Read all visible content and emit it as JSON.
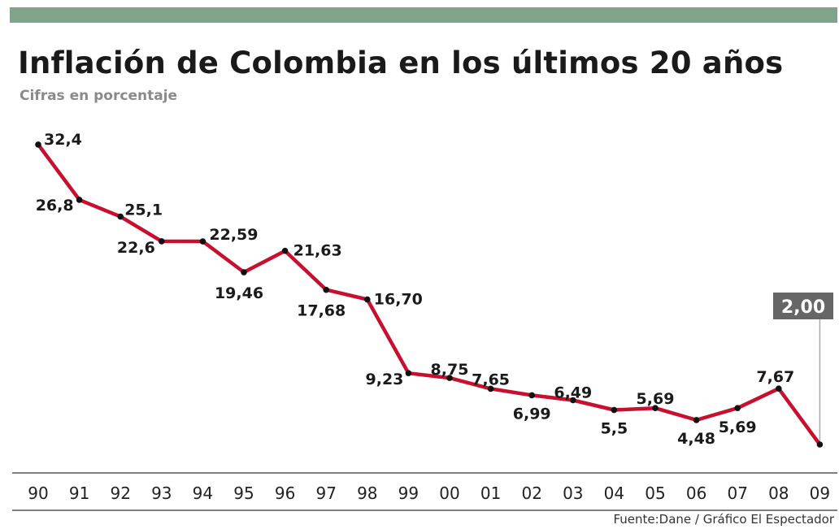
{
  "header": {
    "title": "Inflación de Colombia en los últimos 20 años",
    "subtitle": "Cifras en porcentaje"
  },
  "footer": {
    "source": "Fuente:Dane / Gráfico El Espectador"
  },
  "colors": {
    "top_bar": "#7fa38b",
    "line": "#c8102e",
    "point": "#111111",
    "highlight_label_bg": "#666666",
    "highlight_label_text": "#ffffff"
  },
  "chart_data": {
    "type": "line",
    "title": "Inflación de Colombia en los últimos 20 años",
    "subtitle": "Cifras en porcentaje",
    "xlabel": "",
    "ylabel": "",
    "categories": [
      "90",
      "91",
      "92",
      "93",
      "94",
      "95",
      "96",
      "97",
      "98",
      "99",
      "00",
      "01",
      "02",
      "03",
      "04",
      "05",
      "06",
      "07",
      "08",
      "09"
    ],
    "labels": [
      "32,4",
      "26,8",
      "25,1",
      "22,6",
      "22,59",
      "19,46",
      "21,63",
      "17,68",
      "16,70",
      "9,23",
      "8,75",
      "7,65",
      "6,99",
      "6,49",
      "5,5",
      "5,69",
      "4,48",
      "5,69",
      "7,67",
      "2,00"
    ],
    "series": [
      {
        "values": [
          32.4,
          26.8,
          25.1,
          22.6,
          22.59,
          19.46,
          21.63,
          17.68,
          16.7,
          9.23,
          8.75,
          7.65,
          6.99,
          6.49,
          5.5,
          5.69,
          4.48,
          5.69,
          7.67,
          2.0
        ]
      }
    ],
    "highlight": {
      "category": "09",
      "label": "2,00"
    },
    "grid": false,
    "legend": "none"
  }
}
